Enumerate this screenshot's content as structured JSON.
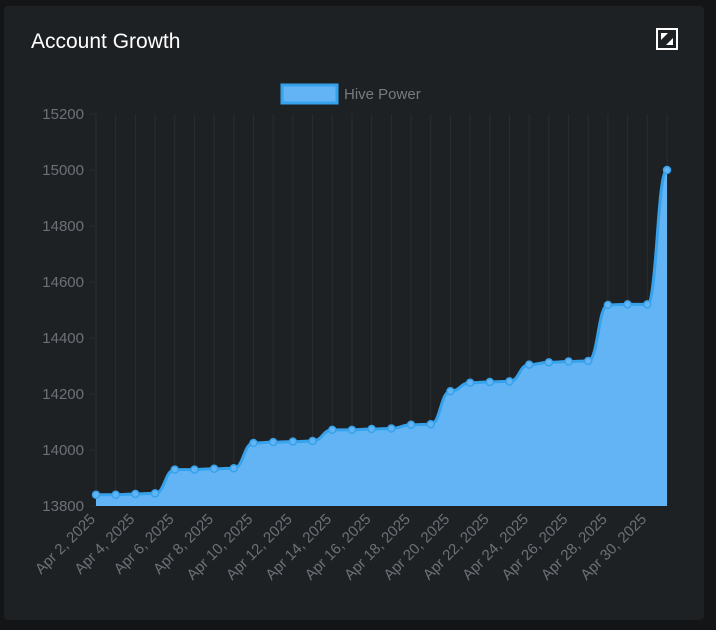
{
  "card": {
    "title": "Account Growth",
    "expand_icon": "expand-icon"
  },
  "colors": {
    "line": "#36a2eb",
    "fill": "#63b4f4",
    "grid": "#2a2d30",
    "text": "#6d7177"
  },
  "chart_data": {
    "type": "area",
    "title": "",
    "xlabel": "",
    "ylabel": "",
    "ylim": [
      13800,
      15200
    ],
    "yticks": [
      13800,
      14000,
      14200,
      14400,
      14600,
      14800,
      15000,
      15200
    ],
    "legend": "top-center",
    "grid": true,
    "x": [
      "Apr 2, 2025",
      "Apr 3, 2025",
      "Apr 4, 2025",
      "Apr 5, 2025",
      "Apr 6, 2025",
      "Apr 7, 2025",
      "Apr 8, 2025",
      "Apr 9, 2025",
      "Apr 10, 2025",
      "Apr 11, 2025",
      "Apr 12, 2025",
      "Apr 13, 2025",
      "Apr 14, 2025",
      "Apr 15, 2025",
      "Apr 16, 2025",
      "Apr 17, 2025",
      "Apr 18, 2025",
      "Apr 19, 2025",
      "Apr 20, 2025",
      "Apr 21, 2025",
      "Apr 22, 2025",
      "Apr 23, 2025",
      "Apr 24, 2025",
      "Apr 25, 2025",
      "Apr 26, 2025",
      "Apr 27, 2025",
      "Apr 28, 2025",
      "Apr 29, 2025",
      "Apr 30, 2025",
      "May 1, 2025"
    ],
    "x_tick_labels": [
      "Apr 2, 2025",
      "Apr 4, 2025",
      "Apr 6, 2025",
      "Apr 8, 2025",
      "Apr 10, 2025",
      "Apr 12, 2025",
      "Apr 14, 2025",
      "Apr 16, 2025",
      "Apr 18, 2025",
      "Apr 20, 2025",
      "Apr 22, 2025",
      "Apr 24, 2025",
      "Apr 26, 2025",
      "Apr 28, 2025",
      "Apr 30, 2025"
    ],
    "series": [
      {
        "name": "Hive Power",
        "values": [
          13840,
          13840,
          13843,
          13845,
          13930,
          13930,
          13933,
          13935,
          14025,
          14028,
          14030,
          14032,
          14072,
          14072,
          14075,
          14077,
          14090,
          14092,
          14210,
          14240,
          14243,
          14245,
          14305,
          14313,
          14316,
          14318,
          14518,
          14520,
          14520,
          15000
        ]
      }
    ]
  }
}
